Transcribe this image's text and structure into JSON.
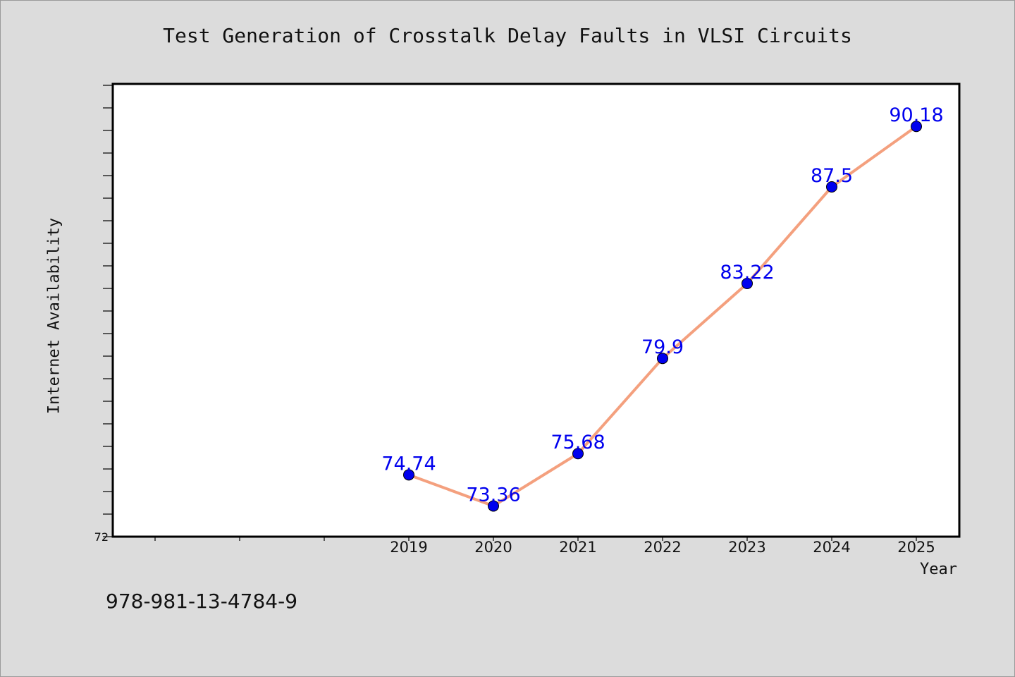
{
  "chart_data": {
    "type": "line",
    "title": "Test Generation of Crosstalk Delay Faults in VLSI Circuits",
    "xlabel": "Year",
    "ylabel": "Internet Availability",
    "categories": [
      "2019",
      "2020",
      "2021",
      "2022",
      "2023",
      "2024",
      "2025"
    ],
    "series": [
      {
        "values": [
          74.74,
          73.36,
          75.68,
          79.9,
          83.22,
          87.5,
          90.18
        ]
      }
    ],
    "data_labels": [
      "74.74",
      "73.36",
      "75.68",
      "79.9",
      "83.22",
      "87.5",
      "90.18"
    ],
    "ylim": [
      72,
      92
    ],
    "y_tick_labels": [
      "72"
    ],
    "grid": false,
    "line_color": "#f4a07e",
    "marker_color": "#0000ee",
    "label_color": "#0000ee"
  },
  "footer": {
    "isbn": "978-981-13-4784-9"
  }
}
